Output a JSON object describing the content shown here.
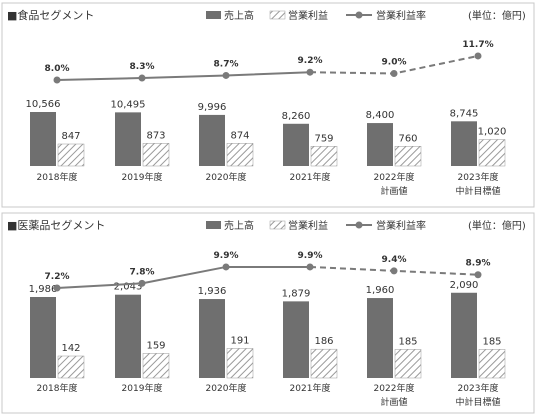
{
  "legend": {
    "sales": "売上高",
    "profit": "営業利益",
    "margin": "営業利益率"
  },
  "colors": {
    "sales_bar": "#6f6f6f",
    "profit_hatch": "#9a9a9a",
    "line": "#7a7a7a",
    "border": "#c8c8c8"
  },
  "chart_data": [
    {
      "type": "bar",
      "title": "■食品セグメント",
      "unit": "(単位：億円)",
      "categories": [
        [
          "2018年度"
        ],
        [
          "2019年度"
        ],
        [
          "2020年度"
        ],
        [
          "2021年度"
        ],
        [
          "2022年度",
          "計画値"
        ],
        [
          "2023年度",
          "中計目標値"
        ]
      ],
      "series": [
        {
          "name": "売上高",
          "type": "bar",
          "values": [
            10566,
            10495,
            9996,
            8260,
            8400,
            8745
          ],
          "labels": [
            "10,566",
            "10,495",
            "9,996",
            "8,260",
            "8,400",
            "8,745"
          ]
        },
        {
          "name": "営業利益",
          "type": "bar",
          "values": [
            847,
            873,
            874,
            759,
            760,
            1020
          ],
          "labels": [
            "847",
            "873",
            "874",
            "759",
            "760",
            "1,020"
          ]
        },
        {
          "name": "営業利益率",
          "type": "line",
          "values": [
            8.0,
            8.3,
            8.7,
            9.2,
            9.0,
            11.7
          ],
          "labels": [
            "8.0%",
            "8.3%",
            "8.7%",
            "9.2%",
            "9.0%",
            "11.7%"
          ],
          "dashed_from_index": 3
        }
      ]
    },
    {
      "type": "bar",
      "title": "■医薬品セグメント",
      "unit": "(単位：億円)",
      "categories": [
        [
          "2018年度"
        ],
        [
          "2019年度"
        ],
        [
          "2020年度"
        ],
        [
          "2021年度"
        ],
        [
          "2022年度",
          "計画値"
        ],
        [
          "2023年度",
          "中計目標値"
        ]
      ],
      "series": [
        {
          "name": "売上高",
          "type": "bar",
          "values": [
            1986,
            2043,
            1936,
            1879,
            1960,
            2090
          ],
          "labels": [
            "1,986",
            "2,043",
            "1,936",
            "1,879",
            "1,960",
            "2,090"
          ]
        },
        {
          "name": "営業利益",
          "type": "bar",
          "values": [
            142,
            159,
            191,
            186,
            185,
            185
          ],
          "labels": [
            "142",
            "159",
            "191",
            "186",
            "185",
            "185"
          ]
        },
        {
          "name": "営業利益率",
          "type": "line",
          "values": [
            7.2,
            7.8,
            9.9,
            9.9,
            9.4,
            8.9
          ],
          "labels": [
            "7.2%",
            "7.8%",
            "9.9%",
            "9.9%",
            "9.4%",
            "8.9%"
          ],
          "dashed_from_index": 3
        }
      ]
    }
  ]
}
